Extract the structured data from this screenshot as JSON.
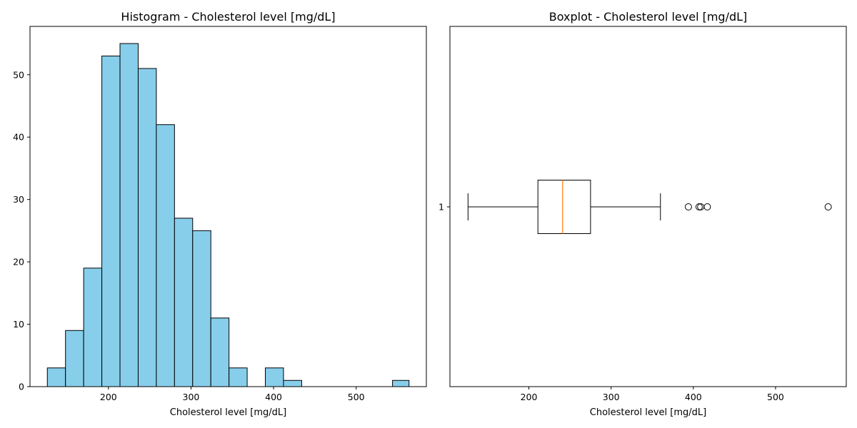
{
  "chart_data": [
    {
      "type": "histogram",
      "title": "Histogram - Cholesterol level [mg/dL]",
      "xlabel": "Cholesterol level [mg/dL]",
      "ylabel": "",
      "bin_edges": [
        126,
        148,
        170,
        192,
        214,
        236,
        258,
        280,
        302,
        324,
        346,
        368,
        390,
        412,
        434,
        456,
        478,
        500,
        522,
        544,
        564
      ],
      "counts": [
        3,
        9,
        19,
        53,
        55,
        51,
        42,
        27,
        25,
        11,
        3,
        0,
        3,
        1,
        0,
        0,
        0,
        0,
        0,
        1
      ],
      "xlim": [
        105,
        585
      ],
      "ylim": [
        0,
        57.75
      ],
      "xticks": [
        200,
        300,
        400,
        500
      ],
      "yticks": [
        0,
        10,
        20,
        30,
        40,
        50
      ],
      "bar_color": "#87CEEB",
      "edge_color": "#000000"
    },
    {
      "type": "boxplot",
      "orientation": "horizontal",
      "title": "Boxplot - Cholesterol level [mg/dL]",
      "xlabel": "Cholesterol level [mg/dL]",
      "ylabel": "",
      "category_label": "1",
      "whisker_low": 126,
      "q1": 211,
      "median": 241,
      "q3": 275,
      "whisker_high": 360,
      "outliers": [
        394,
        407,
        409,
        417,
        564
      ],
      "xlim": [
        104,
        586
      ],
      "xticks": [
        200,
        300,
        400,
        500
      ],
      "median_color": "#FF7F0E"
    }
  ]
}
